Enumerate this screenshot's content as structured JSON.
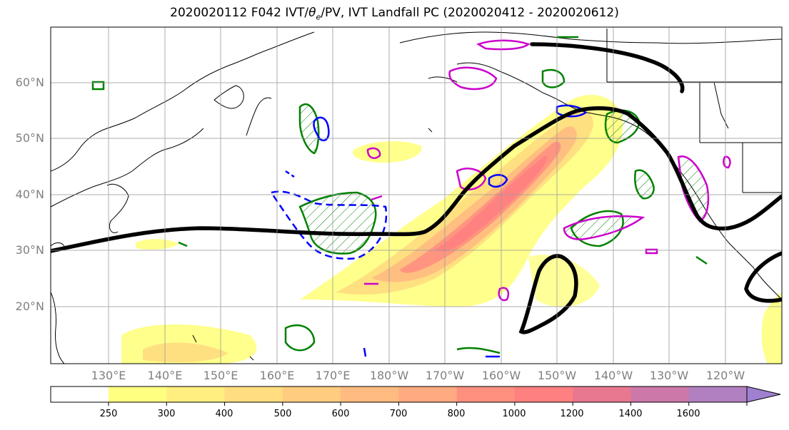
{
  "title": "2020020112 F042 IVT/θe/PV, IVT Landfall PC (2020020412 - 2020020612)",
  "title_parts": {
    "pre": "2020020112 F042 IVT/",
    "sym": "θ",
    "sub": "e",
    "post": "/PV, IVT Landfall PC (2020020412 - 2020020612)"
  },
  "lat_labels": [
    "60°N",
    "50°N",
    "40°N",
    "30°N",
    "20°N"
  ],
  "lon_labels": [
    "130°E",
    "140°E",
    "150°E",
    "160°E",
    "170°E",
    "180°W",
    "170°W",
    "160°W",
    "150°W",
    "140°W",
    "130°W",
    "120°W"
  ],
  "colorbar": {
    "ticks": [
      "250",
      "300",
      "400",
      "500",
      "600",
      "700",
      "800",
      "1000",
      "1200",
      "1400",
      "1600"
    ],
    "colors": [
      "#ffff80",
      "#ffee80",
      "#ffdd80",
      "#ffcc80",
      "#ffbb80",
      "#ffaa80",
      "#ff9080",
      "#ff8080",
      "#e87890",
      "#cc78a8",
      "#b080c0",
      "#a080d0"
    ]
  },
  "colors": {
    "pc_contour": "#000000",
    "pv": "#008000",
    "theta_e_high": "#cc00cc",
    "theta_e_low": "#0000ff",
    "land": "#000000"
  }
}
